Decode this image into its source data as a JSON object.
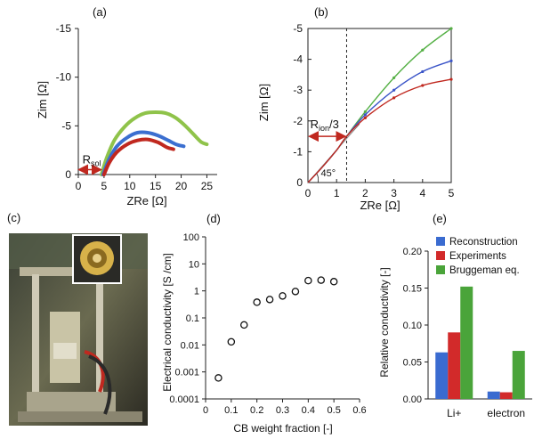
{
  "chart_data": [
    {
      "id": "a",
      "panel_label": "(a)",
      "type": "line",
      "xlabel": "ZRe [Ω]",
      "ylabel": "Zim [Ω]",
      "xlim": [
        0,
        27
      ],
      "ylim": [
        0,
        -15
      ],
      "x_ticks": [
        0,
        5,
        10,
        15,
        20,
        25
      ],
      "y_ticks": [
        0,
        -5,
        -10,
        -15
      ],
      "annotation": {
        "text": "R",
        "subscript": "sol",
        "x_from": 0,
        "x_to": 4.5,
        "y": -0.5
      },
      "series": [
        {
          "color": "#8fc34a",
          "x": [
            4.5,
            5.5,
            7,
            9,
            11,
            13,
            15,
            17,
            19,
            21,
            23,
            24,
            25
          ],
          "y": [
            0,
            -1.7,
            -3.5,
            -4.9,
            -5.8,
            -6.3,
            -6.4,
            -6.3,
            -5.8,
            -4.9,
            -3.8,
            -3.3,
            -3.1
          ]
        },
        {
          "color": "#3b6fd0",
          "x": [
            4.8,
            6,
            7.5,
            9.5,
            11.5,
            13.5,
            15.5,
            17.5,
            19,
            20.5
          ],
          "y": [
            0,
            -1.6,
            -2.9,
            -3.8,
            -4.3,
            -4.3,
            -4.0,
            -3.5,
            -3.1,
            -2.9
          ]
        },
        {
          "color": "#c0281f",
          "x": [
            5,
            6,
            7.5,
            9.5,
            11.5,
            13.5,
            15.5,
            17.2,
            18.5
          ],
          "y": [
            0,
            -1.2,
            -2.3,
            -3.1,
            -3.5,
            -3.6,
            -3.3,
            -2.8,
            -2.6
          ]
        }
      ]
    },
    {
      "id": "b",
      "panel_label": "(b)",
      "type": "line",
      "xlabel": "ZRe [Ω]",
      "ylabel": "Zim [Ω]",
      "xlim": [
        0,
        5
      ],
      "ylim": [
        0,
        -5
      ],
      "x_ticks": [
        0,
        1,
        2,
        3,
        4,
        5
      ],
      "y_ticks": [
        0,
        -1,
        -2,
        -3,
        -4,
        -5
      ],
      "annotation": {
        "text": "R",
        "subscript": "ion",
        "suffix": "/3",
        "x_from": 0,
        "x_to": 1.35,
        "y": -1.5
      },
      "angle_label": "45°",
      "dashed_x": 1.35,
      "series": [
        {
          "color": "#55b045",
          "x": [
            0,
            0.5,
            1,
            1.35,
            2,
            3,
            4,
            5
          ],
          "y": [
            0,
            -0.5,
            -1.05,
            -1.5,
            -2.3,
            -3.4,
            -4.3,
            -5.0
          ]
        },
        {
          "color": "#3b55c8",
          "x": [
            0,
            0.5,
            1,
            1.35,
            2,
            3,
            4,
            5
          ],
          "y": [
            0,
            -0.5,
            -1.05,
            -1.5,
            -2.2,
            -3.0,
            -3.6,
            -3.95
          ]
        },
        {
          "color": "#c0281f",
          "x": [
            0,
            0.5,
            1,
            1.35,
            2,
            3,
            4,
            5
          ],
          "y": [
            0,
            -0.5,
            -1.05,
            -1.5,
            -2.1,
            -2.75,
            -3.15,
            -3.35
          ]
        }
      ]
    },
    {
      "id": "d",
      "panel_label": "(d)",
      "type": "scatter",
      "xlabel": "CB weight fraction [-]",
      "ylabel": "Electrical conductivity [S /cm]",
      "xlim": [
        0,
        0.6
      ],
      "ylim": [
        0.0001,
        100
      ],
      "y_scale": "log",
      "x_ticks": [
        "0",
        "0.1",
        "0.2",
        "0.3",
        "0.4",
        "0.5",
        "0.6"
      ],
      "y_ticks": [
        "100",
        "10",
        "1",
        "0.1",
        "0.01",
        "0.001",
        "0.0001"
      ],
      "x": [
        0.05,
        0.1,
        0.15,
        0.2,
        0.25,
        0.3,
        0.35,
        0.4,
        0.45,
        0.5
      ],
      "y": [
        0.0006,
        0.013,
        0.055,
        0.38,
        0.48,
        0.65,
        0.95,
        2.4,
        2.5,
        2.2
      ]
    },
    {
      "id": "e",
      "panel_label": "(e)",
      "type": "bar",
      "ylabel": "Relative conductivity [-]",
      "ylim": [
        0,
        0.2
      ],
      "y_ticks": [
        "0.00",
        "0.05",
        "0.10",
        "0.15",
        "0.20"
      ],
      "categories": [
        "Li+",
        "electron"
      ],
      "series": [
        {
          "name": "Reconstruction",
          "color": "#3a6bd0",
          "values": [
            0.063,
            0.01
          ]
        },
        {
          "name": "Experiments",
          "color": "#d22a2a",
          "values": [
            0.09,
            0.009
          ]
        },
        {
          "name": "Bruggeman eq.",
          "color": "#4aa43a",
          "values": [
            0.152,
            0.065
          ]
        }
      ],
      "legend": "top-right"
    }
  ],
  "photo": {
    "panel_label": "(c)"
  }
}
